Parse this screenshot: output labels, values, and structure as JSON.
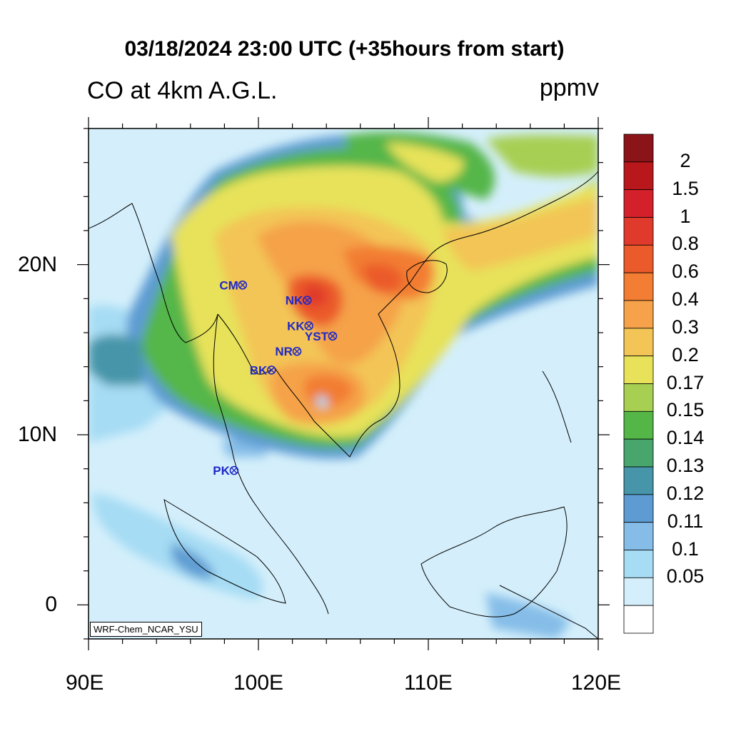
{
  "header": {
    "title": "03/18/2024 23:00 UTC (+35hours from start)",
    "subtitle": "CO at 4km A.G.L.",
    "units": "ppmv"
  },
  "axes": {
    "lon_ticks": [
      "90E",
      "100E",
      "110E",
      "120E"
    ],
    "lat_ticks": [
      "20N",
      "10N",
      "0"
    ],
    "lon_range": [
      90,
      120
    ],
    "lat_range": [
      -2,
      28
    ]
  },
  "stations": [
    {
      "code": "CM",
      "lon": 98.9,
      "lat": 18.8
    },
    {
      "code": "NK",
      "lon": 102.7,
      "lat": 17.9
    },
    {
      "code": "KK",
      "lon": 102.8,
      "lat": 16.4
    },
    {
      "code": "YST",
      "lon": 104.2,
      "lat": 15.8
    },
    {
      "code": "NR",
      "lon": 102.1,
      "lat": 14.9
    },
    {
      "code": "BK",
      "lon": 100.6,
      "lat": 13.8
    },
    {
      "code": "PK",
      "lon": 98.4,
      "lat": 7.9
    }
  ],
  "legend": {
    "levels": [
      "2",
      "1.5",
      "1",
      "0.8",
      "0.6",
      "0.4",
      "0.3",
      "0.2",
      "0.17",
      "0.15",
      "0.14",
      "0.13",
      "0.12",
      "0.11",
      "0.1",
      "0.05"
    ],
    "colors": [
      "#8b1418",
      "#b8171c",
      "#d3202a",
      "#e03a2c",
      "#eb5a2a",
      "#f27d33",
      "#f5a24a",
      "#f3c557",
      "#e7e25a",
      "#a7cf52",
      "#55b648",
      "#48a56c",
      "#4795a9",
      "#5d9bd2",
      "#85bde8",
      "#a6dcf4",
      "#d4effb",
      "#ffffff"
    ]
  },
  "credit": "WRF-Chem_NCAR_YSU"
}
